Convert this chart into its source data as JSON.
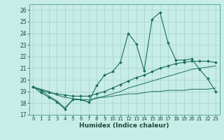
{
  "xlabel": "Humidex (Indice chaleur)",
  "xlim": [
    -0.5,
    23.5
  ],
  "ylim": [
    17,
    26.5
  ],
  "yticks": [
    17,
    18,
    19,
    20,
    21,
    22,
    23,
    24,
    25,
    26
  ],
  "xticks": [
    0,
    1,
    2,
    3,
    4,
    5,
    6,
    7,
    8,
    9,
    10,
    11,
    12,
    13,
    14,
    15,
    16,
    17,
    18,
    19,
    20,
    21,
    22,
    23
  ],
  "bg_color": "#c8ece6",
  "grid_color": "#a0d4cc",
  "line_color": "#1a6e5e",
  "series": [
    [
      19.4,
      18.9,
      18.5,
      18.1,
      17.5,
      18.3,
      18.3,
      18.1,
      19.5,
      20.4,
      20.7,
      21.5,
      24.0,
      23.1,
      20.8,
      25.2,
      25.8,
      23.2,
      21.7,
      21.7,
      21.8,
      20.9,
      20.1,
      19.0
    ],
    [
      19.4,
      19.1,
      18.9,
      18.8,
      18.7,
      18.6,
      18.6,
      18.6,
      18.8,
      19.0,
      19.3,
      19.6,
      19.9,
      20.2,
      20.4,
      20.7,
      21.0,
      21.2,
      21.4,
      21.5,
      21.6,
      21.6,
      21.6,
      21.5
    ],
    [
      19.4,
      19.2,
      19.0,
      18.7,
      18.5,
      18.4,
      18.3,
      18.3,
      18.4,
      18.6,
      18.8,
      19.0,
      19.3,
      19.5,
      19.7,
      19.9,
      20.1,
      20.3,
      20.5,
      20.7,
      20.9,
      21.0,
      21.1,
      21.2
    ],
    [
      19.4,
      19.1,
      18.6,
      18.2,
      17.6,
      18.3,
      18.3,
      18.1,
      18.5,
      18.5,
      18.6,
      18.7,
      18.8,
      18.8,
      18.9,
      19.0,
      19.0,
      19.1,
      19.1,
      19.1,
      19.2,
      19.2,
      19.2,
      19.3
    ]
  ],
  "series_markers": [
    true,
    true,
    false,
    false
  ],
  "series_linewidths": [
    0.8,
    0.8,
    0.7,
    0.7
  ]
}
